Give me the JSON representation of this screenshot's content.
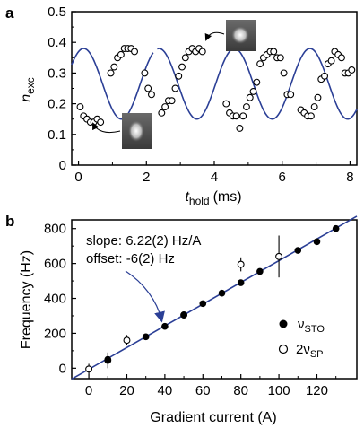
{
  "chart_data": [
    {
      "panel": "a",
      "type": "scatter",
      "xlabel": {
        "main": "t",
        "sub": "hold",
        "unit": "(ms)"
      },
      "ylabel": {
        "main": "n",
        "sub": "exc"
      },
      "xlim": [
        -0.2,
        8.2
      ],
      "ylim": [
        0,
        0.5
      ],
      "xticks": [
        "0",
        "2",
        "4",
        "6",
        "8"
      ],
      "yticks": [
        "0",
        "0.1",
        "0.2",
        "0.3",
        "0.4",
        "0.5"
      ],
      "colors": {
        "fit": "#2b3f96",
        "marker_edge": "#000000",
        "marker_fill": "#ffffff"
      },
      "series": [
        {
          "marker": "open-circle",
          "x": [
            0.05,
            0.15,
            0.25,
            0.35,
            0.45,
            0.55,
            0.65,
            0.95,
            1.05,
            1.15,
            1.25,
            1.35,
            1.45,
            1.55,
            1.65,
            1.95,
            2.05,
            2.15,
            2.45,
            2.55,
            2.65,
            2.75,
            2.85,
            2.95,
            3.05,
            3.15,
            3.25,
            3.35,
            3.45,
            3.55,
            3.65,
            4.35,
            4.45,
            4.55,
            4.65,
            4.75,
            4.85,
            4.95,
            5.05,
            5.15,
            5.25,
            5.35,
            5.45,
            5.55,
            5.65,
            5.75,
            5.85,
            5.95,
            6.05,
            6.15,
            6.25,
            6.55,
            6.65,
            6.75,
            6.85,
            6.95,
            7.05,
            7.15,
            7.25,
            7.35,
            7.45,
            7.55,
            7.65,
            7.75,
            7.85,
            7.95,
            8.05
          ],
          "y": [
            0.19,
            0.16,
            0.15,
            0.14,
            0.14,
            0.15,
            0.14,
            0.3,
            0.32,
            0.35,
            0.36,
            0.38,
            0.38,
            0.38,
            0.37,
            0.3,
            0.25,
            0.23,
            0.17,
            0.19,
            0.21,
            0.21,
            0.25,
            0.29,
            0.32,
            0.35,
            0.37,
            0.38,
            0.37,
            0.38,
            0.37,
            0.2,
            0.17,
            0.16,
            0.16,
            0.12,
            0.16,
            0.19,
            0.22,
            0.24,
            0.27,
            0.33,
            0.35,
            0.36,
            0.37,
            0.37,
            0.35,
            0.35,
            0.3,
            0.23,
            0.23,
            0.18,
            0.17,
            0.16,
            0.16,
            0.19,
            0.22,
            0.28,
            0.29,
            0.33,
            0.34,
            0.37,
            0.36,
            0.35,
            0.3,
            0.3,
            0.31
          ]
        }
      ],
      "fit": {
        "offset": 0.265,
        "amplitude": 0.115,
        "frequency_per_ms": 0.45,
        "phase_rad": 1.14,
        "gap_x": [
          2.2,
          2.32
        ]
      },
      "insets": [
        "atom cloud image (min)",
        "atom cloud image (max)"
      ]
    },
    {
      "panel": "b",
      "type": "scatter",
      "xlabel": "Gradient current (A)",
      "ylabel": "Frequency (Hz)",
      "xlim": [
        -9,
        141
      ],
      "ylim": [
        -60,
        850
      ],
      "xticks": [
        "0",
        "20",
        "40",
        "60",
        "80",
        "100",
        "120"
      ],
      "yticks": [
        "0",
        "200",
        "400",
        "600",
        "800"
      ],
      "colors": {
        "fit": "#2b3f96",
        "arrow": "#2b3f96"
      },
      "annotation": [
        "slope: 6.22(2) Hz/A",
        "offset: -6(2) Hz"
      ],
      "fit": {
        "slope": 6.22,
        "offset": -6
      },
      "series": [
        {
          "name": "νSTO",
          "legend": {
            "main": "ν",
            "sub": "STO"
          },
          "marker": "filled-circle",
          "x": [
            10,
            30,
            40,
            50,
            60,
            70,
            80,
            90,
            110,
            120,
            130
          ],
          "y": [
            50,
            180,
            240,
            305,
            370,
            430,
            490,
            555,
            675,
            725,
            800
          ],
          "yerr": [
            0,
            0,
            0,
            0,
            0,
            0,
            0,
            0,
            0,
            0,
            0
          ]
        },
        {
          "name": "2νSP",
          "legend": {
            "main": "2ν",
            "sub": "SP"
          },
          "marker": "open-circle",
          "x": [
            0,
            10,
            20,
            50,
            80,
            100
          ],
          "y": [
            -5,
            45,
            160,
            305,
            595,
            640
          ],
          "yerr": [
            30,
            45,
            30,
            15,
            40,
            120
          ]
        }
      ]
    }
  ]
}
